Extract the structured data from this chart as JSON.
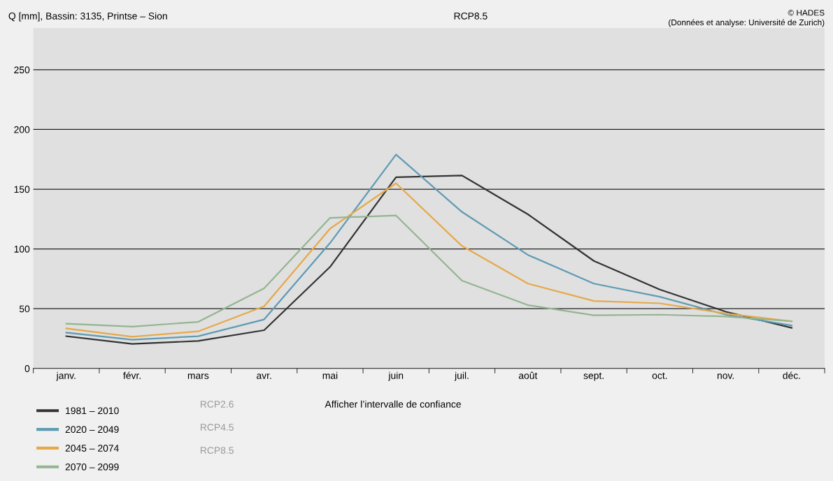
{
  "chart_data": {
    "type": "line",
    "title": "Q [mm], Bassin: 3135, Printse – Sion",
    "categories": [
      "janv.",
      "févr.",
      "mars",
      "avr.",
      "mai",
      "juin",
      "juil.",
      "août",
      "sept.",
      "oct.",
      "nov.",
      "déc."
    ],
    "series": [
      {
        "name": "1981 – 2010",
        "color": "#333333",
        "values": [
          27,
          20.5,
          23,
          32,
          85,
          160,
          161.5,
          129,
          90,
          66,
          47.5,
          34
        ]
      },
      {
        "name": "2020 – 2049",
        "color": "#5f9bb3",
        "values": [
          30,
          24,
          27,
          41,
          105,
          179,
          131,
          95,
          71,
          60,
          45,
          36
        ]
      },
      {
        "name": "2045 – 2074",
        "color": "#e6a94a",
        "values": [
          33.5,
          26.5,
          31,
          52,
          117,
          155,
          102.5,
          71,
          56.5,
          54.5,
          46,
          39.5
        ]
      },
      {
        "name": "2070 – 2099",
        "color": "#93b591",
        "values": [
          37.5,
          35,
          39,
          67,
          126,
          128,
          73.5,
          53,
          44.5,
          45,
          43.5,
          39.5
        ]
      }
    ],
    "ylim": [
      0,
      285
    ],
    "yticks": [
      0,
      50,
      100,
      150,
      200,
      250
    ],
    "grid": "y",
    "legend": "bottom left",
    "marker": "none",
    "line_style": "solid",
    "annotations": [
      "RCP8.5",
      "© HADES",
      "(Données et analyse: Université de Zurich)",
      "RCP2.6",
      "RCP4.5",
      "RCP8.5",
      "Afficher l’intervalle de confiance"
    ]
  }
}
